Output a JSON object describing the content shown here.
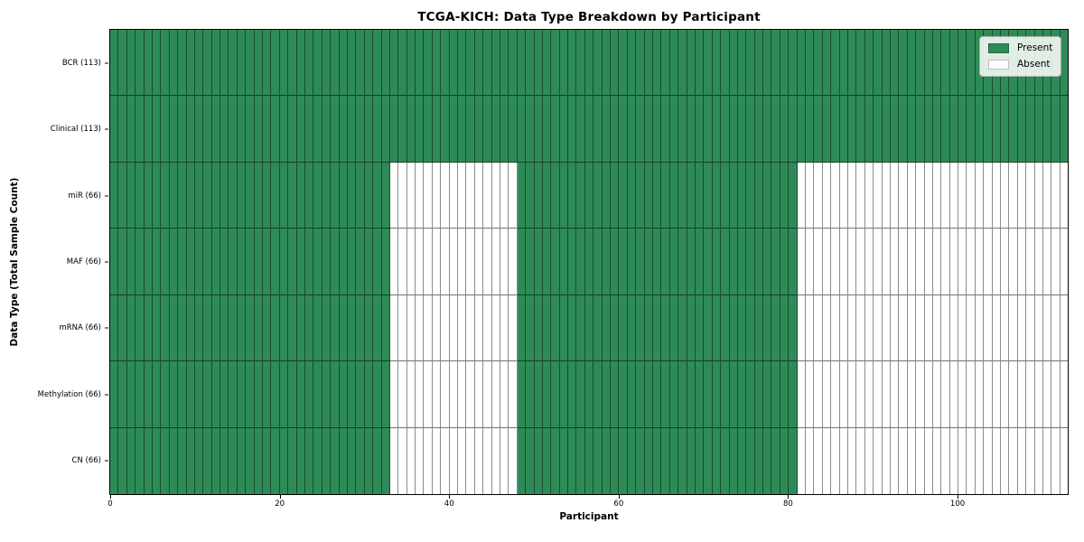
{
  "figure": {
    "background": "#ffffff"
  },
  "chart_data": {
    "type": "heatmap",
    "title": "TCGA-KICH: Data Type Breakdown by Participant",
    "xlabel": "Participant",
    "ylabel": "Data Type (Total Sample Count)",
    "x_ticks": [
      0,
      20,
      40,
      60,
      80,
      100
    ],
    "x_range": [
      0,
      113
    ],
    "n_participants": 113,
    "colors": {
      "present": "#2e8b57",
      "absent": "#ffffff",
      "cell_edge": "rgba(0,0,0,0.45)",
      "frame": "#000000"
    },
    "legend": {
      "position": "upper right",
      "entries": [
        {
          "label": "Present",
          "color": "#2e8b57"
        },
        {
          "label": "Absent",
          "color": "#ffffff"
        }
      ]
    },
    "rows": [
      {
        "label": "BCR (113)",
        "total": 113,
        "present_ranges": [
          [
            0,
            112
          ]
        ]
      },
      {
        "label": "Clinical (113)",
        "total": 113,
        "present_ranges": [
          [
            0,
            112
          ]
        ]
      },
      {
        "label": "miR (66)",
        "total": 66,
        "present_ranges": [
          [
            0,
            32
          ],
          [
            48,
            80
          ]
        ]
      },
      {
        "label": "MAF (66)",
        "total": 66,
        "present_ranges": [
          [
            0,
            32
          ],
          [
            48,
            80
          ]
        ]
      },
      {
        "label": "mRNA (66)",
        "total": 66,
        "present_ranges": [
          [
            0,
            32
          ],
          [
            48,
            80
          ]
        ]
      },
      {
        "label": "Methylation (66)",
        "total": 66,
        "present_ranges": [
          [
            0,
            32
          ],
          [
            48,
            80
          ]
        ]
      },
      {
        "label": "CN (66)",
        "total": 66,
        "present_ranges": [
          [
            0,
            32
          ],
          [
            48,
            80
          ]
        ]
      }
    ]
  }
}
